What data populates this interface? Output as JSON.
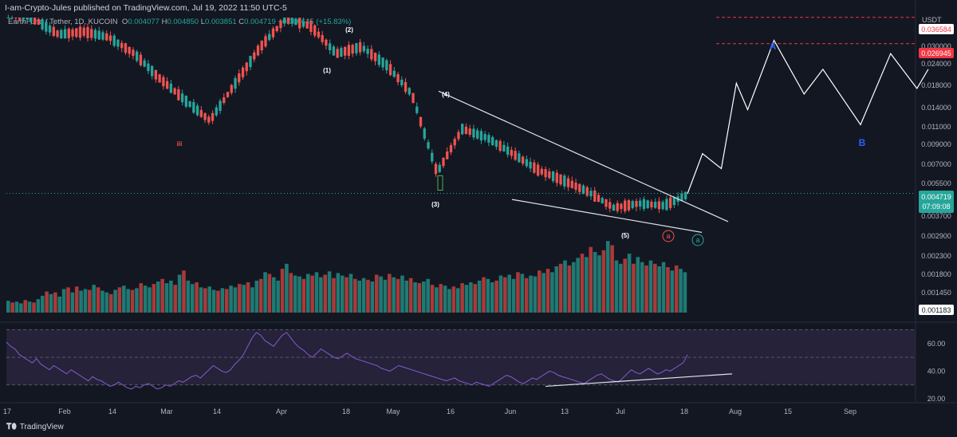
{
  "header": {
    "published": "I-am-Crypto-Jules published on TradingView.com, Jul 19, 2022 11:50 UTC-5",
    "symbol": "EarthFund / Tether, 1D, KUCOIN",
    "o_label": "O",
    "o_value": "0.004077",
    "h_label": "H",
    "h_value": "0.004850",
    "l_label": "L",
    "l_value": "0.003851",
    "c_label": "C",
    "c_value": "0.004719",
    "change": "+0.000645 (+15.83%)"
  },
  "footer": {
    "brand": "TradingView",
    "logo": "tradingview-logo-icon"
  },
  "colors": {
    "background": "#131722",
    "up": "#26a69a",
    "down": "#ef5350",
    "volume_up": "#1f7a73",
    "volume_down": "#a93a3a",
    "rsi": "#7e57c2",
    "rsi_band": "#2a2540",
    "projection": "#ffffff",
    "wave_label": "#2962ff",
    "target_line": "#f23645",
    "price_badge": "#26a69a"
  },
  "chart_data": [
    {
      "type": "candlestick",
      "title": "",
      "currency": "USDT",
      "y_scale": "log",
      "ylim": [
        0.00118,
        0.0365
      ],
      "x_ticks": [
        "17",
        "Feb",
        "14",
        "Mar",
        "14",
        "Apr",
        "18",
        "May",
        "16",
        "Jun",
        "13",
        "Jul",
        "18",
        "Aug",
        "15",
        "Sep"
      ],
      "y_ticks": [
        "0.036584",
        "0.030000",
        "0.026945",
        "0.024000",
        "0.018000",
        "0.014000",
        "0.011000",
        "0.009000",
        "0.007000",
        "0.005500",
        "0.004719",
        "0.003700",
        "0.002900",
        "0.002300",
        "0.001800",
        "0.001450",
        "0.001183"
      ],
      "highlighted_levels": [
        {
          "value": "0.036584",
          "label": "0.036584"
        },
        {
          "value": "0.026945",
          "label": "0.026945"
        }
      ],
      "last_price": {
        "value": "0.004719",
        "countdown": "07:09:08"
      },
      "ohlc_approx": [
        [
          "Jan-19",
          0.04,
          0.044,
          0.033,
          0.036
        ],
        [
          "Jan-26",
          0.036,
          0.038,
          0.028,
          0.03
        ],
        [
          "Feb-02",
          0.03,
          0.034,
          0.024,
          0.031
        ],
        [
          "Feb-09",
          0.031,
          0.036,
          0.027,
          0.029
        ],
        [
          "Feb-16",
          0.029,
          0.033,
          0.023,
          0.024
        ],
        [
          "Feb-23",
          0.024,
          0.026,
          0.016,
          0.018
        ],
        [
          "Mar-02",
          0.018,
          0.022,
          0.013,
          0.014
        ],
        [
          "Mar-09",
          0.014,
          0.015,
          0.01,
          0.011
        ],
        [
          "Mar-16",
          0.011,
          0.018,
          0.0105,
          0.017
        ],
        [
          "Mar-23",
          0.017,
          0.028,
          0.016,
          0.026
        ],
        [
          "Mar-30",
          0.026,
          0.04,
          0.025,
          0.036
        ],
        [
          "Apr-06",
          0.036,
          0.042,
          0.031,
          0.033
        ],
        [
          "Apr-13",
          0.033,
          0.034,
          0.022,
          0.024
        ],
        [
          "Apr-20",
          0.024,
          0.027,
          0.022,
          0.026
        ],
        [
          "Apr-27",
          0.026,
          0.027,
          0.02,
          0.021
        ],
        [
          "May-04",
          0.021,
          0.022,
          0.014,
          0.015
        ],
        [
          "May-11",
          0.015,
          0.016,
          0.0045,
          0.006
        ],
        [
          "May-18",
          0.006,
          0.012,
          0.0055,
          0.01
        ],
        [
          "May-25",
          0.01,
          0.0115,
          0.0085,
          0.009
        ],
        [
          "Jun-01",
          0.009,
          0.0095,
          0.007,
          0.0075
        ],
        [
          "Jun-08",
          0.0075,
          0.008,
          0.006,
          0.0062
        ],
        [
          "Jun-15",
          0.0062,
          0.008,
          0.005,
          0.0055
        ],
        [
          "Jun-22",
          0.0055,
          0.006,
          0.0045,
          0.0048
        ],
        [
          "Jun-29",
          0.0048,
          0.0052,
          0.0036,
          0.004
        ],
        [
          "Jul-06",
          0.004,
          0.0055,
          0.0038,
          0.0042
        ],
        [
          "Jul-13",
          0.0042,
          0.0043,
          0.0035,
          0.0041
        ],
        [
          "Jul-19",
          0.0041,
          0.0049,
          0.0039,
          0.0047
        ]
      ],
      "annotations": {
        "elliott_waves": [
          {
            "label": "iii",
            "color": "#ef5350"
          },
          {
            "label": "(1)"
          },
          {
            "label": "(2)"
          },
          {
            "label": "(3)"
          },
          {
            "label": "(4)"
          },
          {
            "label": "(5)"
          },
          {
            "label": "a",
            "style": "circle",
            "color": "#ef5350"
          },
          {
            "label": "a",
            "style": "circle",
            "color": "#26a69a"
          },
          {
            "label": "A",
            "color": "#2962ff"
          },
          {
            "label": "B",
            "color": "#2962ff"
          }
        ],
        "trendlines": [
          "falling-wedge-upper",
          "falling-wedge-lower",
          "rsi-rising-support"
        ],
        "projection": {
          "description": "zigzag",
          "points": [
            [
              0.0047,
              "Jul-19"
            ],
            [
              0.0075,
              "Jul-23"
            ],
            [
              0.0063,
              "Jul-28"
            ],
            [
              0.017,
              "Aug-01"
            ],
            [
              0.0125,
              "Aug-04"
            ],
            [
              0.028,
              "Aug-11"
            ],
            [
              0.015,
              "Aug-19"
            ],
            [
              0.02,
              "Aug-24"
            ],
            [
              0.0105,
              "Sep-03"
            ],
            [
              0.024,
              "Sep-11"
            ],
            [
              0.016,
              "Sep-18"
            ],
            [
              0.02,
              "Sep-21"
            ]
          ]
        }
      }
    },
    {
      "type": "bar",
      "title": "",
      "series": [
        {
          "values": [
            14,
            12,
            13,
            11,
            15,
            13,
            12,
            16,
            20,
            25,
            22,
            24,
            19,
            28,
            30,
            24,
            31,
            26,
            28,
            27,
            33,
            30,
            26,
            24,
            22,
            27,
            30,
            32,
            28,
            27,
            29,
            35,
            32,
            30,
            34,
            37,
            40,
            35,
            38,
            33,
            45,
            50,
            38,
            34,
            36,
            30,
            29,
            31,
            27,
            26,
            29,
            28,
            32,
            30,
            34,
            33,
            36,
            30,
            38,
            40,
            48,
            46,
            42,
            38,
            52,
            58,
            47,
            44,
            43,
            40,
            46,
            44,
            48,
            42,
            45,
            49,
            41,
            47,
            44,
            42,
            46,
            40,
            38,
            41,
            39,
            37,
            45,
            43,
            39,
            46,
            42,
            40,
            44,
            38,
            41,
            36,
            35,
            37,
            40,
            33,
            30,
            34,
            32,
            28,
            31,
            29,
            35,
            33,
            36,
            34,
            38,
            42,
            40,
            36,
            38,
            44,
            42,
            45,
            40,
            48,
            46,
            41,
            44,
            43,
            50,
            47,
            52,
            48,
            55,
            58,
            62,
            56,
            60,
            65,
            70,
            66,
            78,
            72,
            68,
            74,
            85,
            80,
            62,
            58,
            64,
            70,
            58,
            66,
            60,
            56,
            62,
            58,
            55,
            60,
            54,
            50,
            56,
            52,
            48
          ]
        }
      ]
    },
    {
      "type": "line",
      "title": "",
      "ylim": [
        20,
        72
      ],
      "y_ticks": [
        "60.00",
        "40.00",
        "20.00"
      ],
      "bands": [
        30,
        50,
        70
      ],
      "series": [
        {
          "values": [
            61,
            58,
            56,
            52,
            50,
            48,
            46,
            49,
            45,
            43,
            41,
            44,
            42,
            40,
            38,
            41,
            39,
            37,
            35,
            33,
            36,
            34,
            33,
            31,
            29,
            30,
            32,
            30,
            28,
            27,
            29,
            28,
            30,
            31,
            29,
            27,
            28,
            30,
            29,
            31,
            33,
            32,
            34,
            36,
            37,
            35,
            38,
            41,
            44,
            42,
            40,
            39,
            41,
            45,
            48,
            52,
            58,
            64,
            68,
            66,
            62,
            60,
            58,
            62,
            66,
            68,
            64,
            60,
            57,
            55,
            52,
            50,
            53,
            56,
            54,
            52,
            50,
            49,
            51,
            53,
            51,
            49,
            48,
            47,
            46,
            45,
            44,
            42,
            41,
            40,
            42,
            44,
            43,
            42,
            41,
            40,
            39,
            38,
            37,
            36,
            35,
            34,
            33,
            34,
            35,
            33,
            32,
            31,
            30,
            32,
            31,
            30,
            29,
            31,
            33,
            35,
            37,
            36,
            34,
            32,
            31,
            33,
            35,
            34,
            36,
            38,
            40,
            39,
            37,
            36,
            35,
            34,
            33,
            32,
            31,
            33,
            35,
            37,
            38,
            36,
            34,
            33,
            32,
            35,
            38,
            41,
            39,
            38,
            40,
            42,
            40,
            38,
            39,
            41,
            40,
            42,
            44,
            46,
            52
          ]
        }
      ]
    }
  ]
}
